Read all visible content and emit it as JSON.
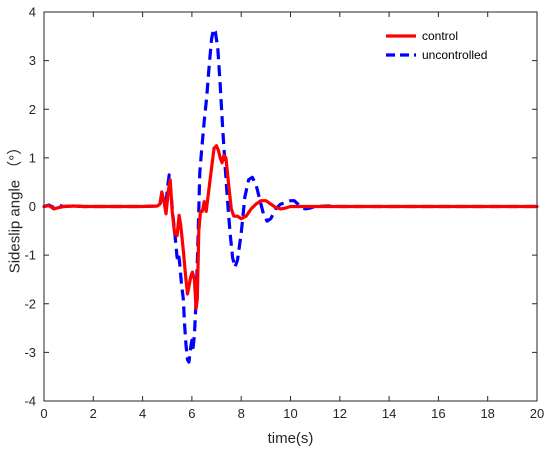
{
  "chart_data": {
    "type": "line",
    "title": "",
    "xlabel": "time(s)",
    "ylabel": "Sideslip angle （°）",
    "xlim": [
      0,
      20
    ],
    "ylim": [
      -4,
      4
    ],
    "xticks": [
      0,
      2,
      4,
      6,
      8,
      10,
      12,
      14,
      16,
      18,
      20
    ],
    "yticks": [
      -4,
      -3,
      -2,
      -1,
      0,
      1,
      2,
      3,
      4
    ],
    "grid": false,
    "legend_position": "top-right",
    "series": [
      {
        "name": "control",
        "color": "#ff0000",
        "style": "solid",
        "points": [
          [
            0,
            0
          ],
          [
            0.2,
            0.02
          ],
          [
            0.4,
            -0.05
          ],
          [
            0.6,
            -0.02
          ],
          [
            0.8,
            0
          ],
          [
            1.2,
            0.01
          ],
          [
            1.6,
            0
          ],
          [
            2,
            0
          ],
          [
            3,
            0
          ],
          [
            4,
            0
          ],
          [
            4.6,
            0.01
          ],
          [
            4.7,
            0.05
          ],
          [
            4.78,
            0.3
          ],
          [
            4.85,
            0.15
          ],
          [
            4.95,
            -0.15
          ],
          [
            5.05,
            0.35
          ],
          [
            5.12,
            0.55
          ],
          [
            5.2,
            -0.1
          ],
          [
            5.3,
            -0.55
          ],
          [
            5.4,
            -0.6
          ],
          [
            5.48,
            -0.18
          ],
          [
            5.55,
            -0.4
          ],
          [
            5.65,
            -0.9
          ],
          [
            5.75,
            -1.45
          ],
          [
            5.82,
            -1.8
          ],
          [
            5.88,
            -1.65
          ],
          [
            5.95,
            -1.45
          ],
          [
            6.02,
            -1.35
          ],
          [
            6.1,
            -1.5
          ],
          [
            6.17,
            -2.1
          ],
          [
            6.22,
            -1.9
          ],
          [
            6.28,
            -0.5
          ],
          [
            6.35,
            -0.1
          ],
          [
            6.42,
            -0.1
          ],
          [
            6.5,
            0.1
          ],
          [
            6.58,
            -0.1
          ],
          [
            6.7,
            0.4
          ],
          [
            6.8,
            0.8
          ],
          [
            6.9,
            1.2
          ],
          [
            7.0,
            1.25
          ],
          [
            7.08,
            1.15
          ],
          [
            7.15,
            1.0
          ],
          [
            7.22,
            0.9
          ],
          [
            7.3,
            1.05
          ],
          [
            7.38,
            1.0
          ],
          [
            7.5,
            0.4
          ],
          [
            7.6,
            -0.05
          ],
          [
            7.7,
            -0.2
          ],
          [
            7.85,
            -0.2
          ],
          [
            8.0,
            -0.25
          ],
          [
            8.2,
            -0.2
          ],
          [
            8.4,
            -0.05
          ],
          [
            8.6,
            0.05
          ],
          [
            8.8,
            0.12
          ],
          [
            9.0,
            0.12
          ],
          [
            9.2,
            0.05
          ],
          [
            9.4,
            -0.02
          ],
          [
            9.6,
            -0.05
          ],
          [
            9.8,
            -0.03
          ],
          [
            10.0,
            0
          ],
          [
            10.5,
            0
          ],
          [
            11,
            0
          ],
          [
            12,
            0
          ],
          [
            13,
            0
          ],
          [
            14,
            0
          ],
          [
            15,
            0
          ],
          [
            16,
            0
          ],
          [
            17,
            0
          ],
          [
            18,
            0
          ],
          [
            19,
            0
          ],
          [
            20,
            0
          ]
        ]
      },
      {
        "name": "uncontrolled",
        "color": "#0000ff",
        "style": "dashed",
        "points": [
          [
            0,
            0
          ],
          [
            0.2,
            0.03
          ],
          [
            0.4,
            -0.02
          ],
          [
            0.6,
            0.02
          ],
          [
            0.8,
            0
          ],
          [
            1.2,
            0.01
          ],
          [
            1.6,
            0
          ],
          [
            2,
            0
          ],
          [
            3,
            0
          ],
          [
            4,
            0
          ],
          [
            4.6,
            0.01
          ],
          [
            4.7,
            0.03
          ],
          [
            4.78,
            0.2
          ],
          [
            4.85,
            0.1
          ],
          [
            4.95,
            0.05
          ],
          [
            5.0,
            0.35
          ],
          [
            5.08,
            0.65
          ],
          [
            5.15,
            0.3
          ],
          [
            5.22,
            -0.15
          ],
          [
            5.3,
            -0.5
          ],
          [
            5.4,
            -1.05
          ],
          [
            5.45,
            -0.95
          ],
          [
            5.5,
            -1.15
          ],
          [
            5.58,
            -1.6
          ],
          [
            5.65,
            -1.9
          ],
          [
            5.7,
            -2.4
          ],
          [
            5.76,
            -2.85
          ],
          [
            5.82,
            -3.15
          ],
          [
            5.88,
            -3.2
          ],
          [
            5.95,
            -2.9
          ],
          [
            6.0,
            -2.75
          ],
          [
            6.05,
            -2.9
          ],
          [
            6.1,
            -2.65
          ],
          [
            6.18,
            -1.85
          ],
          [
            6.25,
            -0.6
          ],
          [
            6.32,
            0.7
          ],
          [
            6.4,
            1.2
          ],
          [
            6.5,
            1.75
          ],
          [
            6.6,
            2.25
          ],
          [
            6.7,
            2.9
          ],
          [
            6.8,
            3.45
          ],
          [
            6.88,
            3.65
          ],
          [
            6.95,
            3.6
          ],
          [
            7.05,
            3.25
          ],
          [
            7.15,
            2.5
          ],
          [
            7.25,
            1.6
          ],
          [
            7.35,
            0.8
          ],
          [
            7.45,
            0.1
          ],
          [
            7.55,
            -0.55
          ],
          [
            7.65,
            -1.05
          ],
          [
            7.75,
            -1.25
          ],
          [
            7.85,
            -1.1
          ],
          [
            8.0,
            -0.55
          ],
          [
            8.15,
            0.2
          ],
          [
            8.3,
            0.55
          ],
          [
            8.45,
            0.6
          ],
          [
            8.6,
            0.45
          ],
          [
            8.75,
            0.15
          ],
          [
            8.9,
            -0.15
          ],
          [
            9.05,
            -0.3
          ],
          [
            9.2,
            -0.25
          ],
          [
            9.4,
            -0.05
          ],
          [
            9.6,
            0.05
          ],
          [
            9.8,
            0.08
          ],
          [
            10.0,
            0.12
          ],
          [
            10.15,
            0.12
          ],
          [
            10.3,
            0.05
          ],
          [
            10.45,
            -0.02
          ],
          [
            10.6,
            -0.05
          ],
          [
            10.8,
            -0.03
          ],
          [
            11.0,
            0
          ],
          [
            11.5,
            0.01
          ],
          [
            12,
            0
          ],
          [
            13,
            0
          ],
          [
            14,
            0
          ],
          [
            15,
            0
          ],
          [
            16,
            0
          ],
          [
            17,
            0
          ],
          [
            18,
            0
          ],
          [
            19,
            0
          ],
          [
            20,
            0
          ]
        ]
      }
    ]
  }
}
